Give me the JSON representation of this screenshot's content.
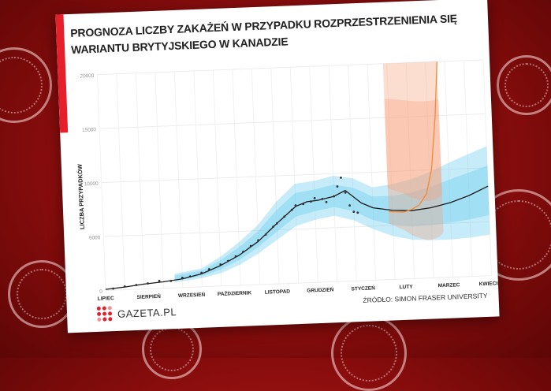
{
  "page": {
    "title": "PROGNOZA LICZBY ZAKAŻEŃ W PRZYPADKU ROZPRZESTRZENIENIA SIĘ WARIANTU BRYTYJSKIEGO W KANADZIE",
    "logo_text": "GAZETA.PL",
    "source": "ŹRÓDŁO: SIMON FRASER UNIVERSITY"
  },
  "chart_data": {
    "type": "line",
    "title": "PROGNOZA LICZBY ZAKAŻEŃ W PRZYPADKU ROZPRZESTRZENIENIA SIĘ WARIANTU BRYTYJSKIEGO W KANADZIE",
    "xlabel": "",
    "ylabel": "LICZBA PRZYPADKÓW",
    "ylim": [
      0,
      20000
    ],
    "xlim": [
      0,
      10
    ],
    "yticks": [
      {
        "value": 0,
        "label": "0"
      },
      {
        "value": 5000,
        "label": "5000"
      },
      {
        "value": 10000,
        "label": "10000"
      },
      {
        "value": 15000,
        "label": "15000"
      },
      {
        "value": 20000,
        "label": "20000"
      }
    ],
    "xticks": [
      "LIPIEC",
      "SIERPIEŃ",
      "WRZESIEŃ",
      "PAŹDZIERNIK",
      "LISTOPAD",
      "GRUDZIEŃ",
      "STYCZEŃ",
      "LUTY",
      "MARZEC",
      "KWIECIEŃ"
    ],
    "grid": true,
    "series": [
      {
        "color": "#1a1a1a",
        "x": [
          0,
          0.5,
          1,
          1.5,
          2,
          2.5,
          3,
          3.5,
          4,
          4.5,
          5,
          5.3,
          5.6,
          6,
          6.3,
          6.7,
          7,
          7.5,
          8,
          8.5,
          9,
          9.5,
          10
        ],
        "y": [
          100,
          250,
          450,
          600,
          800,
          1200,
          1900,
          2800,
          4000,
          5600,
          7100,
          7500,
          7600,
          7900,
          8400,
          7200,
          6700,
          6400,
          6300,
          6500,
          6900,
          7500,
          8300
        ]
      },
      {
        "color": "#f08a3a",
        "x": [
          7.4,
          7.8,
          8,
          8.2,
          8.4,
          8.55,
          8.7,
          8.8
        ],
        "y": [
          6300,
          6200,
          6400,
          6800,
          7800,
          10000,
          15000,
          20000
        ]
      }
    ],
    "bands": [
      {
        "color": "#5cc8ee",
        "x": [
          1.8,
          2.5,
          3,
          3.5,
          4,
          4.5,
          5,
          5.5,
          6,
          6.5,
          7,
          7.5,
          8,
          8.5,
          9,
          9.5,
          10
        ],
        "lower": [
          500,
          800,
          1200,
          1900,
          2900,
          4100,
          5300,
          5800,
          6100,
          5600,
          4700,
          4000,
          3600,
          3500,
          3500,
          3600,
          3800
        ],
        "upper": [
          1300,
          1700,
          2700,
          4000,
          5500,
          7600,
          9200,
          9400,
          9800,
          9500,
          8600,
          8800,
          9200,
          9800,
          10600,
          11300,
          12000
        ]
      },
      {
        "color": "#f7a07a",
        "x": [
          7.4,
          7.8,
          8,
          8.2,
          8.4,
          8.55,
          8.7,
          8.8
        ],
        "lower": [
          5200,
          4500,
          4000,
          3700,
          3500,
          3600,
          3800,
          4200
        ],
        "upper": [
          20000,
          20000,
          20000,
          20000,
          20000,
          20000,
          20000,
          20000
        ]
      }
    ],
    "scatter": {
      "color": "#333333",
      "x": [
        0.2,
        0.5,
        0.8,
        1.1,
        1.4,
        1.7,
        2.0,
        2.2,
        2.5,
        2.7,
        3.0,
        3.2,
        3.4,
        3.6,
        3.8,
        4.0,
        4.2,
        4.4,
        4.5,
        4.7,
        4.9,
        5.0,
        5.2,
        5.4,
        5.5,
        5.7,
        5.8,
        6.0,
        6.1,
        6.2,
        6.3,
        6.4,
        6.5,
        6.6
      ],
      "y": [
        150,
        300,
        400,
        500,
        700,
        650,
        900,
        1000,
        1300,
        1600,
        2000,
        2300,
        2700,
        3100,
        3600,
        4100,
        4600,
        5300,
        5600,
        6200,
        6800,
        7200,
        7300,
        7500,
        7800,
        7700,
        7400,
        7900,
        8800,
        9600,
        8200,
        7000,
        6400,
        6300
      ]
    }
  }
}
